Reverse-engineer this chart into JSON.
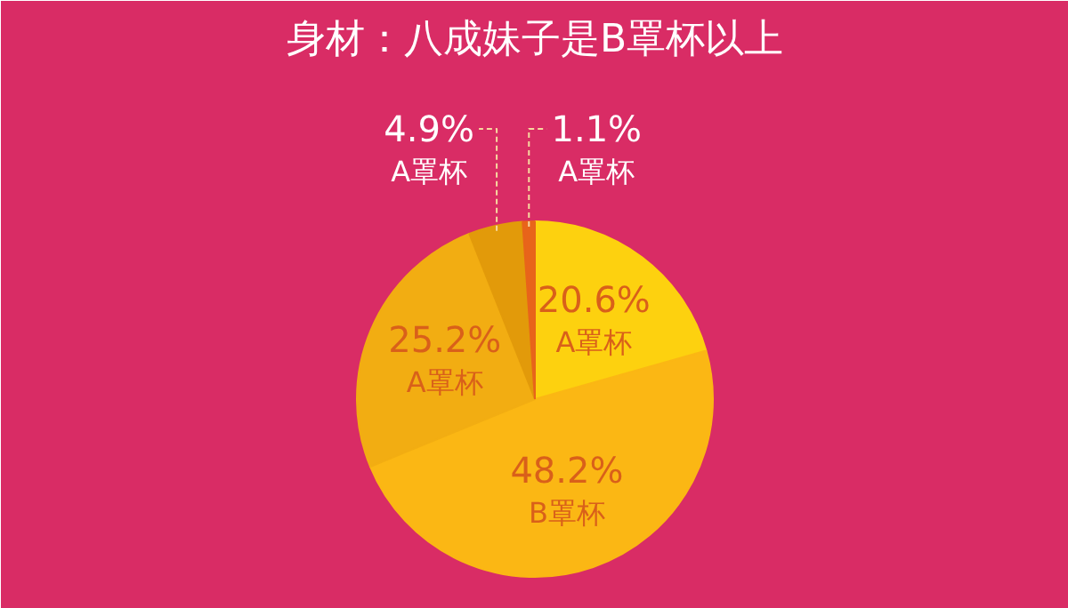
{
  "chart_data": {
    "type": "pie",
    "title": "身材：八成妹子是B罩杯以上",
    "categories": [
      "A罩杯",
      "B罩杯",
      "A罩杯",
      "A罩杯",
      "A罩杯"
    ],
    "values": [
      20.6,
      48.2,
      25.2,
      4.9,
      1.1
    ],
    "colors": [
      "#fdd10f",
      "#fbb714",
      "#f2ad12",
      "#e29a0a",
      "#e8641a"
    ],
    "value_labels": [
      "20.6%",
      "48.2%",
      "25.2%",
      "4.9%",
      "1.1%"
    ]
  }
}
